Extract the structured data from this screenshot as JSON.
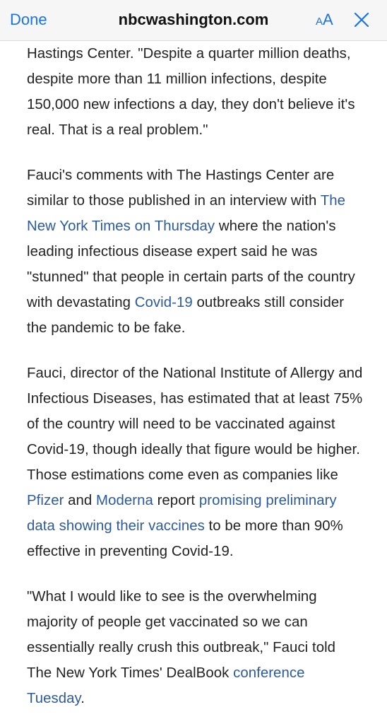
{
  "topbar": {
    "done_label": "Done",
    "site": "nbcwashington.com",
    "text_size_small": "A",
    "text_size_large": "A",
    "close_icon": "close-x-icon"
  },
  "colors": {
    "accent": "#1a73e8",
    "link": "#2c5aa0",
    "text": "#222222",
    "bar": "#f6f6f6"
  },
  "article": {
    "p1": {
      "text": "Hastings Center. \"Despite a quarter million deaths, despite more than 11 million infections, despite 150,000 new infections a day, they don't believe it's real. That is a real problem.\""
    },
    "p2": {
      "t1": "Fauci's comments with The Hastings Center are similar to those published in an interview with ",
      "link1": "The New York Times on Thursday",
      "t2": " where the nation's leading infectious disease expert said he was \"stunned\" that people in certain parts of the country with devastating ",
      "link2": "Covid-19",
      "t3": " outbreaks still consider the pandemic to be fake."
    },
    "p3": {
      "t1": "Fauci, director of the National Institute of Allergy and Infectious Diseases, has estimated that at least 75% of the country will need to be vaccinated against Covid-19, though ideally that figure would be higher. Those estimations come even as companies like ",
      "link1": "Pfizer",
      "t2": " and ",
      "link2": "Moderna",
      "t3": " report ",
      "link3": "promising preliminary data showing their vaccines",
      "t4": " to be more than 90% effective in preventing Covid-19."
    },
    "p4": {
      "t1": "\"What I would like to see is the overwhelming majority of people get vaccinated so we can essentially really crush this outbreak,\" Fauci told The New York Times' DealBook ",
      "link1": "conference Tuesday",
      "t2": "."
    }
  }
}
